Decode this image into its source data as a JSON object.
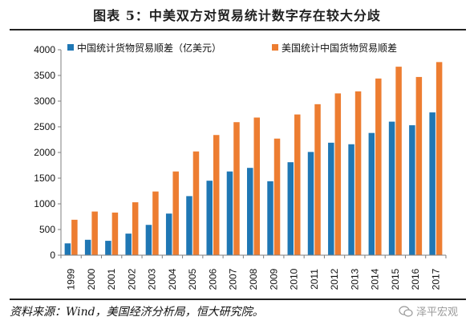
{
  "title": "图表 5：中美双方对贸易统计数字存在较大分歧",
  "source": "资料来源：Wind，美国经济分析局，恒大研究院。",
  "watermark": "泽平宏观",
  "colors": {
    "china": "#1f77b4",
    "us": "#ed7d31",
    "axis": "#7f7f7f"
  },
  "chart_data": {
    "type": "bar",
    "categories": [
      "1999",
      "2000",
      "2001",
      "2002",
      "2003",
      "2004",
      "2005",
      "2006",
      "2007",
      "2008",
      "2009",
      "2010",
      "2011",
      "2012",
      "2013",
      "2014",
      "2015",
      "2016",
      "2017"
    ],
    "series": [
      {
        "name": "中国统计货物贸易顺差（亿美元）",
        "values": [
          230,
          300,
          280,
          420,
          590,
          810,
          1150,
          1450,
          1630,
          1700,
          1440,
          1810,
          2010,
          2190,
          2160,
          2380,
          2600,
          2530,
          2780
        ]
      },
      {
        "name": "美国统计中国货物贸易顺差",
        "values": [
          690,
          850,
          830,
          1030,
          1240,
          1630,
          2020,
          2340,
          2590,
          2680,
          2270,
          2740,
          2940,
          3150,
          3190,
          3440,
          3670,
          3470,
          3760
        ]
      }
    ],
    "yticks": [
      "0",
      "500",
      "1000",
      "1500",
      "2000",
      "2500",
      "3000",
      "3500",
      "4000"
    ],
    "ylim": [
      0,
      4000
    ],
    "legend_position": "top"
  }
}
